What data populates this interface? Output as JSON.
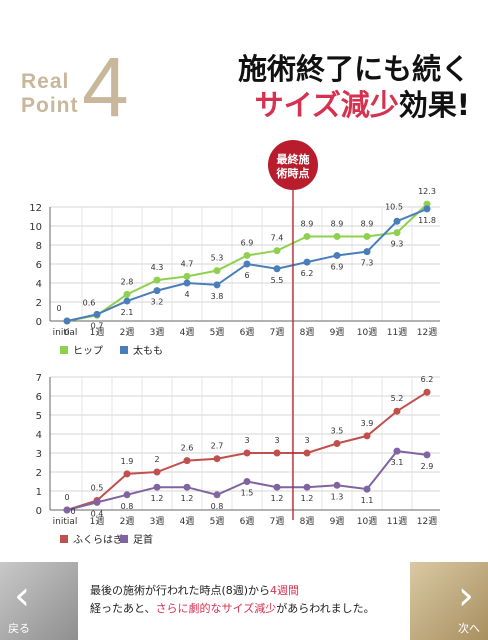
{
  "header": {
    "real": "Real",
    "point": "Point",
    "number": "4",
    "line1": "施術終了にも続く",
    "line2_accent": "サイズ減少",
    "line2_rest": "効果!"
  },
  "marker": {
    "label_line1": "最終施",
    "label_line2": "術時点",
    "color": "#b91c2c"
  },
  "chart_data": [
    {
      "type": "line",
      "categories": [
        "initial",
        "1週",
        "2週",
        "3週",
        "4週",
        "5週",
        "6週",
        "7週",
        "8週",
        "9週",
        "10週",
        "11週",
        "12週"
      ],
      "ylim": [
        0,
        12
      ],
      "yticks": [
        0,
        2,
        4,
        6,
        8,
        10,
        12
      ],
      "series": [
        {
          "name": "ヒップ",
          "color": "#8fd14f",
          "values": [
            0,
            0.6,
            2.8,
            4.3,
            4.7,
            5.3,
            6.9,
            7.4,
            8.9,
            8.9,
            8.9,
            9.3,
            12.3
          ]
        },
        {
          "name": "太もも",
          "color": "#4a7ebb",
          "values": [
            0,
            0.7,
            2.1,
            3.2,
            4,
            3.8,
            6,
            5.5,
            6.2,
            6.9,
            7.3,
            10.5,
            11.8
          ]
        }
      ]
    },
    {
      "type": "line",
      "categories": [
        "initial",
        "1週",
        "2週",
        "3週",
        "4週",
        "5週",
        "6週",
        "7週",
        "8週",
        "9週",
        "10週",
        "11週",
        "12週"
      ],
      "ylim": [
        0,
        7
      ],
      "yticks": [
        0,
        1,
        2,
        3,
        4,
        5,
        6,
        7
      ],
      "series": [
        {
          "name": "ふくらはぎ",
          "color": "#c0504d",
          "values": [
            0,
            0.5,
            1.9,
            2,
            2.6,
            2.7,
            3,
            3,
            3,
            3.5,
            3.9,
            5.2,
            6.2
          ]
        },
        {
          "name": "足首",
          "color": "#8064a2",
          "values": [
            0,
            0.4,
            0.8,
            1.2,
            1.2,
            0.8,
            1.5,
            1.2,
            1.2,
            1.3,
            1.1,
            3.1,
            2.9
          ]
        }
      ]
    }
  ],
  "footer": {
    "back_label": "戻る",
    "next_label": "次へ",
    "note_part1": "最後の施術が行われた時点(8週)から",
    "note_accent1": "4週間",
    "note_part2": "経ったあと、",
    "note_accent2": "さらに劇的なサイズ減少",
    "note_part3": "があらわれました。"
  }
}
